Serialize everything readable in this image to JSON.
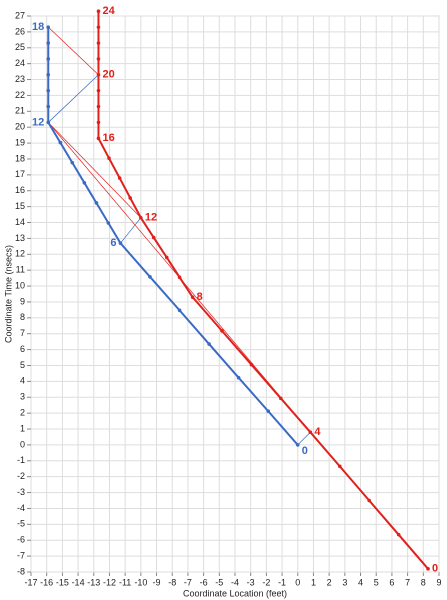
{
  "chart_data": {
    "type": "scatter",
    "x_label": "Coordinate Location (feet)",
    "y_label": "Coordinate Time (nsecs)",
    "xlim": [
      -17,
      9
    ],
    "ylim": [
      -8,
      27
    ],
    "xticks": [
      -17,
      -16,
      -15,
      -14,
      -13,
      -12,
      -11,
      -10,
      -9,
      -8,
      -7,
      -6,
      -5,
      -4,
      -3,
      -2,
      -1,
      0,
      1,
      2,
      3,
      4,
      5,
      6,
      7,
      8,
      9
    ],
    "yticks": [
      -8,
      -7,
      -6,
      -5,
      -4,
      -3,
      -2,
      -1,
      0,
      1,
      2,
      3,
      4,
      5,
      6,
      7,
      8,
      9,
      10,
      11,
      12,
      13,
      14,
      15,
      16,
      17,
      18,
      19,
      20,
      21,
      22,
      23,
      24,
      25,
      26,
      27
    ],
    "grid": true,
    "series": [
      {
        "color": "#3a6bc4",
        "x": [
          0,
          -1.88,
          -3.77,
          -5.65,
          -7.53,
          -9.42,
          -11.3,
          -12.07,
          -12.83,
          -13.6,
          -14.37,
          -15.13,
          -15.9,
          -15.9,
          -15.9,
          -15.9,
          -15.9,
          -15.9,
          -15.9
        ],
        "values": [
          0,
          2.12,
          4.23,
          6.35,
          8.47,
          10.58,
          12.7,
          13.97,
          15.23,
          16.5,
          17.77,
          19.03,
          20.3,
          21.3,
          22.3,
          23.3,
          24.3,
          25.3,
          26.3
        ],
        "labels": [
          0,
          null,
          null,
          null,
          null,
          null,
          6,
          null,
          null,
          null,
          null,
          null,
          12,
          null,
          null,
          null,
          null,
          null,
          18
        ]
      },
      {
        "color": "#e0201c",
        "x": [
          8.3,
          6.43,
          4.55,
          2.68,
          0.8,
          -1.08,
          -2.95,
          -4.83,
          -6.7,
          -7.53,
          -8.35,
          -9.18,
          -10,
          -10.68,
          -11.35,
          -12.03,
          -12.7,
          -12.7,
          -12.7,
          -12.7,
          -12.7,
          -12.7,
          -12.7,
          -12.7,
          -12.7
        ],
        "values": [
          -7.8,
          -5.65,
          -3.5,
          -1.35,
          0.8,
          2.93,
          5.05,
          7.18,
          9.3,
          10.55,
          11.8,
          13.05,
          14.3,
          15.55,
          16.8,
          18.05,
          19.3,
          20.3,
          21.3,
          22.3,
          23.3,
          24.3,
          25.3,
          26.3,
          27.3
        ],
        "labels": [
          0,
          null,
          null,
          null,
          4,
          null,
          null,
          null,
          8,
          null,
          null,
          null,
          12,
          null,
          null,
          null,
          16,
          null,
          null,
          null,
          20,
          null,
          null,
          null,
          24
        ]
      }
    ],
    "connectors": [
      {
        "color": "#e0201c",
        "x": [
          -15.9,
          -12.7
        ],
        "values": [
          26.3,
          23.3
        ]
      },
      {
        "color": "#e0201c",
        "x": [
          -15.9,
          0.8
        ],
        "values": [
          20.3,
          0.8
        ]
      },
      {
        "color": "#e0201c",
        "x": [
          -15.9,
          -10
        ],
        "values": [
          20.3,
          14.3
        ]
      },
      {
        "color": "#3a6bc4",
        "x": [
          -15.9,
          -12.7
        ],
        "values": [
          20.3,
          23.3
        ]
      },
      {
        "color": "#3a6bc4",
        "x": [
          -11.3,
          -10
        ],
        "values": [
          12.7,
          14.3
        ]
      },
      {
        "color": "#3a6bc4",
        "x": [
          0,
          0.8
        ],
        "values": [
          0,
          0.8
        ]
      }
    ]
  }
}
